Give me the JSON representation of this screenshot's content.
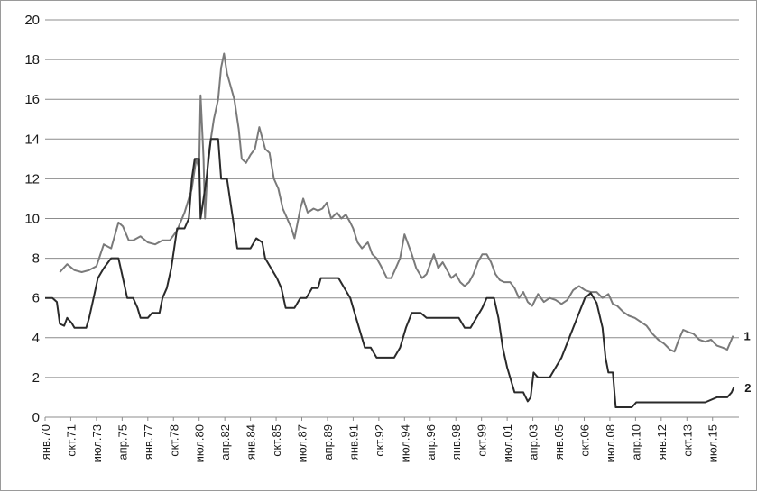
{
  "chart_data": {
    "type": "line",
    "title": "",
    "xlabel": "",
    "ylabel": "",
    "ylim": [
      0,
      20
    ],
    "yticks": [
      0,
      2,
      4,
      6,
      8,
      10,
      12,
      14,
      16,
      18,
      20
    ],
    "grid": "horizontal",
    "legend": "none",
    "x_range": [
      1970.0,
      2017.3
    ],
    "x_tick_labels": [
      "янв.70",
      "окт.71",
      "июл.73",
      "апр.75",
      "янв.77",
      "окт.78",
      "июл.80",
      "апр.82",
      "янв.84",
      "окт.85",
      "июл.87",
      "апр.89",
      "янв.91",
      "окт.92",
      "июл.94",
      "апр.96",
      "янв.98",
      "окт.99",
      "июл.01",
      "апр.03",
      "янв.05",
      "окт.06",
      "июл.08",
      "апр.10",
      "янв.12",
      "окт.13",
      "июл.15"
    ],
    "x_tick_positions": [
      1970.0,
      1971.75,
      1973.5,
      1975.25,
      1977.0,
      1978.75,
      1980.5,
      1982.25,
      1984.0,
      1985.75,
      1987.5,
      1989.25,
      1991.0,
      1992.75,
      1994.5,
      1996.25,
      1998.0,
      1999.75,
      2001.5,
      2003.25,
      2005.0,
      2006.75,
      2008.5,
      2010.25,
      2012.0,
      2013.75,
      2015.5
    ],
    "series": [
      {
        "name": "1",
        "color": "#7a7a7a",
        "points": [
          [
            1971.0,
            7.3
          ],
          [
            1971.5,
            7.7
          ],
          [
            1972.0,
            7.4
          ],
          [
            1972.5,
            7.3
          ],
          [
            1973.0,
            7.4
          ],
          [
            1973.5,
            7.6
          ],
          [
            1974.0,
            8.7
          ],
          [
            1974.5,
            8.5
          ],
          [
            1975.0,
            9.8
          ],
          [
            1975.3,
            9.6
          ],
          [
            1975.7,
            8.9
          ],
          [
            1976.0,
            8.9
          ],
          [
            1976.5,
            9.1
          ],
          [
            1977.0,
            8.8
          ],
          [
            1977.5,
            8.7
          ],
          [
            1978.0,
            8.9
          ],
          [
            1978.5,
            8.9
          ],
          [
            1979.0,
            9.4
          ],
          [
            1979.5,
            10.3
          ],
          [
            1980.0,
            11.5
          ],
          [
            1980.3,
            13.0
          ],
          [
            1980.5,
            12.5
          ],
          [
            1980.6,
            16.2
          ],
          [
            1980.8,
            13.0
          ],
          [
            1980.9,
            10.0
          ],
          [
            1981.1,
            13.0
          ],
          [
            1981.3,
            14.0
          ],
          [
            1981.5,
            15.0
          ],
          [
            1981.8,
            16.0
          ],
          [
            1982.0,
            17.6
          ],
          [
            1982.2,
            18.3
          ],
          [
            1982.4,
            17.3
          ],
          [
            1982.6,
            16.8
          ],
          [
            1982.9,
            16.0
          ],
          [
            1983.2,
            14.5
          ],
          [
            1983.4,
            13.0
          ],
          [
            1983.7,
            12.8
          ],
          [
            1984.0,
            13.2
          ],
          [
            1984.3,
            13.5
          ],
          [
            1984.6,
            14.6
          ],
          [
            1985.0,
            13.5
          ],
          [
            1985.3,
            13.3
          ],
          [
            1985.6,
            12.0
          ],
          [
            1985.9,
            11.5
          ],
          [
            1986.2,
            10.5
          ],
          [
            1986.5,
            10.0
          ],
          [
            1986.8,
            9.5
          ],
          [
            1987.0,
            9.0
          ],
          [
            1987.4,
            10.5
          ],
          [
            1987.6,
            11.0
          ],
          [
            1987.9,
            10.3
          ],
          [
            1988.3,
            10.5
          ],
          [
            1988.6,
            10.4
          ],
          [
            1988.9,
            10.5
          ],
          [
            1989.2,
            10.8
          ],
          [
            1989.5,
            10.0
          ],
          [
            1989.9,
            10.3
          ],
          [
            1990.2,
            10.0
          ],
          [
            1990.5,
            10.2
          ],
          [
            1990.8,
            9.8
          ],
          [
            1991.0,
            9.5
          ],
          [
            1991.3,
            8.8
          ],
          [
            1991.6,
            8.5
          ],
          [
            1992.0,
            8.8
          ],
          [
            1992.3,
            8.2
          ],
          [
            1992.6,
            8.0
          ],
          [
            1992.9,
            7.6
          ],
          [
            1993.3,
            7.0
          ],
          [
            1993.6,
            7.0
          ],
          [
            1993.9,
            7.5
          ],
          [
            1994.2,
            8.0
          ],
          [
            1994.5,
            9.2
          ],
          [
            1994.8,
            8.6
          ],
          [
            1995.0,
            8.2
          ],
          [
            1995.3,
            7.5
          ],
          [
            1995.7,
            7.0
          ],
          [
            1996.0,
            7.2
          ],
          [
            1996.3,
            7.8
          ],
          [
            1996.5,
            8.2
          ],
          [
            1996.8,
            7.5
          ],
          [
            1997.1,
            7.8
          ],
          [
            1997.4,
            7.4
          ],
          [
            1997.7,
            7.0
          ],
          [
            1998.0,
            7.2
          ],
          [
            1998.3,
            6.8
          ],
          [
            1998.6,
            6.6
          ],
          [
            1998.9,
            6.8
          ],
          [
            1999.2,
            7.2
          ],
          [
            1999.5,
            7.8
          ],
          [
            1999.8,
            8.2
          ],
          [
            2000.1,
            8.2
          ],
          [
            2000.4,
            7.8
          ],
          [
            2000.7,
            7.2
          ],
          [
            2001.0,
            6.9
          ],
          [
            2001.3,
            6.8
          ],
          [
            2001.7,
            6.8
          ],
          [
            2002.0,
            6.5
          ],
          [
            2002.3,
            6.0
          ],
          [
            2002.6,
            6.3
          ],
          [
            2002.9,
            5.8
          ],
          [
            2003.2,
            5.6
          ],
          [
            2003.6,
            6.2
          ],
          [
            2004.0,
            5.8
          ],
          [
            2004.4,
            6.0
          ],
          [
            2004.8,
            5.9
          ],
          [
            2005.2,
            5.7
          ],
          [
            2005.6,
            5.9
          ],
          [
            2006.0,
            6.4
          ],
          [
            2006.4,
            6.6
          ],
          [
            2006.8,
            6.4
          ],
          [
            2007.2,
            6.3
          ],
          [
            2007.6,
            6.3
          ],
          [
            2008.0,
            6.0
          ],
          [
            2008.4,
            6.2
          ],
          [
            2008.7,
            5.7
          ],
          [
            2009.0,
            5.6
          ],
          [
            2009.4,
            5.3
          ],
          [
            2009.8,
            5.1
          ],
          [
            2010.2,
            5.0
          ],
          [
            2010.6,
            4.8
          ],
          [
            2011.0,
            4.6
          ],
          [
            2011.4,
            4.2
          ],
          [
            2011.8,
            3.9
          ],
          [
            2012.2,
            3.7
          ],
          [
            2012.6,
            3.4
          ],
          [
            2012.9,
            3.3
          ],
          [
            2013.2,
            3.9
          ],
          [
            2013.5,
            4.4
          ],
          [
            2013.8,
            4.3
          ],
          [
            2014.2,
            4.2
          ],
          [
            2014.6,
            3.9
          ],
          [
            2015.0,
            3.8
          ],
          [
            2015.4,
            3.9
          ],
          [
            2015.8,
            3.6
          ],
          [
            2016.2,
            3.5
          ],
          [
            2016.5,
            3.4
          ],
          [
            2016.9,
            4.1
          ]
        ]
      },
      {
        "name": "2",
        "color": "#2a2a2a",
        "points": [
          [
            1970.0,
            6.0
          ],
          [
            1970.5,
            6.0
          ],
          [
            1970.8,
            5.8
          ],
          [
            1971.0,
            4.7
          ],
          [
            1971.3,
            4.6
          ],
          [
            1971.5,
            5.0
          ],
          [
            1971.8,
            4.75
          ],
          [
            1972.0,
            4.5
          ],
          [
            1972.8,
            4.5
          ],
          [
            1973.0,
            5.0
          ],
          [
            1973.3,
            6.0
          ],
          [
            1973.6,
            7.0
          ],
          [
            1974.0,
            7.5
          ],
          [
            1974.5,
            8.0
          ],
          [
            1975.0,
            8.0
          ],
          [
            1975.3,
            7.0
          ],
          [
            1975.6,
            6.0
          ],
          [
            1976.0,
            6.0
          ],
          [
            1976.3,
            5.5
          ],
          [
            1976.5,
            5.0
          ],
          [
            1977.0,
            5.0
          ],
          [
            1977.3,
            5.25
          ],
          [
            1977.8,
            5.25
          ],
          [
            1978.0,
            6.0
          ],
          [
            1978.3,
            6.5
          ],
          [
            1978.6,
            7.5
          ],
          [
            1979.0,
            9.5
          ],
          [
            1979.5,
            9.5
          ],
          [
            1979.8,
            10.0
          ],
          [
            1980.0,
            12.0
          ],
          [
            1980.2,
            13.0
          ],
          [
            1980.5,
            13.0
          ],
          [
            1980.6,
            10.0
          ],
          [
            1980.8,
            11.0
          ],
          [
            1981.0,
            12.0
          ],
          [
            1981.3,
            14.0
          ],
          [
            1981.8,
            14.0
          ],
          [
            1982.0,
            12.0
          ],
          [
            1982.4,
            12.0
          ],
          [
            1982.6,
            11.0
          ],
          [
            1982.8,
            10.0
          ],
          [
            1983.1,
            8.5
          ],
          [
            1983.6,
            8.5
          ],
          [
            1984.0,
            8.5
          ],
          [
            1984.4,
            9.0
          ],
          [
            1984.8,
            8.8
          ],
          [
            1985.0,
            8.0
          ],
          [
            1985.4,
            7.5
          ],
          [
            1985.8,
            7.0
          ],
          [
            1986.1,
            6.5
          ],
          [
            1986.4,
            5.5
          ],
          [
            1987.0,
            5.5
          ],
          [
            1987.4,
            6.0
          ],
          [
            1987.8,
            6.0
          ],
          [
            1988.2,
            6.5
          ],
          [
            1988.6,
            6.5
          ],
          [
            1988.8,
            7.0
          ],
          [
            1989.5,
            7.0
          ],
          [
            1990.0,
            7.0
          ],
          [
            1990.4,
            6.5
          ],
          [
            1990.8,
            6.0
          ],
          [
            1991.0,
            5.5
          ],
          [
            1991.4,
            4.5
          ],
          [
            1991.8,
            3.5
          ],
          [
            1992.2,
            3.5
          ],
          [
            1992.6,
            3.0
          ],
          [
            1993.2,
            3.0
          ],
          [
            1993.8,
            3.0
          ],
          [
            1994.2,
            3.5
          ],
          [
            1994.6,
            4.5
          ],
          [
            1995.0,
            5.25
          ],
          [
            1995.6,
            5.25
          ],
          [
            1996.0,
            5.0
          ],
          [
            1996.6,
            5.0
          ],
          [
            1997.2,
            5.0
          ],
          [
            1997.8,
            5.0
          ],
          [
            1998.2,
            5.0
          ],
          [
            1998.6,
            4.5
          ],
          [
            1999.0,
            4.5
          ],
          [
            1999.4,
            5.0
          ],
          [
            1999.8,
            5.5
          ],
          [
            2000.1,
            6.0
          ],
          [
            2000.6,
            6.0
          ],
          [
            2000.9,
            5.0
          ],
          [
            2001.2,
            3.5
          ],
          [
            2001.5,
            2.5
          ],
          [
            2001.8,
            1.75
          ],
          [
            2002.0,
            1.25
          ],
          [
            2002.6,
            1.25
          ],
          [
            2002.9,
            0.8
          ],
          [
            2003.1,
            1.0
          ],
          [
            2003.3,
            2.25
          ],
          [
            2003.6,
            2.0
          ],
          [
            2004.0,
            2.0
          ],
          [
            2004.4,
            2.0
          ],
          [
            2004.8,
            2.5
          ],
          [
            2005.2,
            3.0
          ],
          [
            2005.6,
            3.75
          ],
          [
            2006.0,
            4.5
          ],
          [
            2006.4,
            5.25
          ],
          [
            2006.8,
            6.0
          ],
          [
            2007.2,
            6.25
          ],
          [
            2007.6,
            5.75
          ],
          [
            2008.0,
            4.5
          ],
          [
            2008.2,
            3.0
          ],
          [
            2008.4,
            2.25
          ],
          [
            2008.7,
            2.25
          ],
          [
            2008.9,
            0.5
          ],
          [
            2009.5,
            0.5
          ],
          [
            2010.0,
            0.5
          ],
          [
            2010.3,
            0.75
          ],
          [
            2011.0,
            0.75
          ],
          [
            2012.0,
            0.75
          ],
          [
            2013.0,
            0.75
          ],
          [
            2014.0,
            0.75
          ],
          [
            2015.0,
            0.75
          ],
          [
            2015.8,
            1.0
          ],
          [
            2016.5,
            1.0
          ],
          [
            2016.8,
            1.25
          ],
          [
            2016.95,
            1.5
          ]
        ]
      }
    ]
  }
}
